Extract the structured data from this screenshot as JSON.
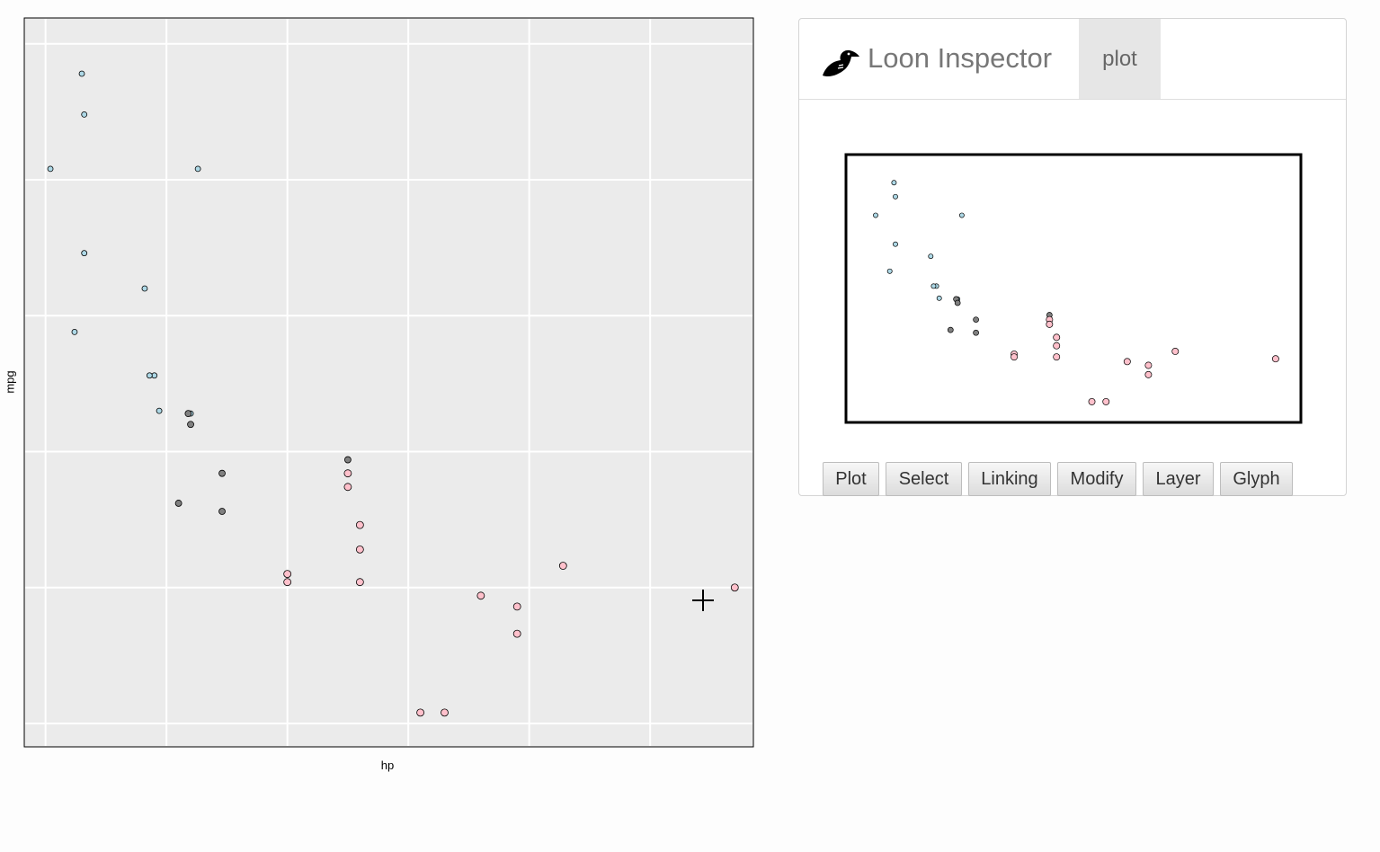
{
  "chart_data": {
    "type": "scatter",
    "xlabel": "hp",
    "ylabel": "mpg",
    "x_range": [
      41.2,
      342.7
    ],
    "y_range": [
      9.14,
      35.95
    ],
    "grid": true,
    "show_tick_labels": false,
    "points": [
      {
        "x": 66,
        "y": 32.4,
        "group": "blue"
      },
      {
        "x": 52,
        "y": 30.4,
        "group": "blue"
      },
      {
        "x": 65,
        "y": 33.9,
        "group": "blue"
      },
      {
        "x": 113,
        "y": 30.4,
        "group": "blue"
      },
      {
        "x": 66,
        "y": 27.3,
        "group": "blue"
      },
      {
        "x": 91,
        "y": 26.0,
        "group": "blue"
      },
      {
        "x": 62,
        "y": 24.4,
        "group": "blue"
      },
      {
        "x": 95,
        "y": 22.8,
        "group": "blue"
      },
      {
        "x": 93,
        "y": 22.8,
        "group": "blue"
      },
      {
        "x": 97,
        "y": 21.5,
        "group": "blue"
      },
      {
        "x": 110,
        "y": 21.4,
        "group": "blue"
      },
      {
        "x": 109,
        "y": 21.4,
        "group": "gray"
      },
      {
        "x": 110,
        "y": 21.0,
        "group": "gray"
      },
      {
        "x": 123,
        "y": 19.2,
        "group": "gray"
      },
      {
        "x": 123,
        "y": 17.8,
        "group": "gray"
      },
      {
        "x": 105,
        "y": 18.1,
        "group": "gray"
      },
      {
        "x": 175,
        "y": 19.7,
        "group": "gray"
      },
      {
        "x": 175,
        "y": 19.2,
        "group": "pink"
      },
      {
        "x": 175,
        "y": 18.7,
        "group": "pink"
      },
      {
        "x": 180,
        "y": 17.3,
        "group": "pink"
      },
      {
        "x": 180,
        "y": 16.4,
        "group": "pink"
      },
      {
        "x": 180,
        "y": 15.2,
        "group": "pink"
      },
      {
        "x": 150,
        "y": 15.5,
        "group": "pink"
      },
      {
        "x": 150,
        "y": 15.2,
        "group": "pink"
      },
      {
        "x": 264,
        "y": 15.8,
        "group": "pink"
      },
      {
        "x": 245,
        "y": 14.3,
        "group": "pink"
      },
      {
        "x": 230,
        "y": 14.7,
        "group": "pink"
      },
      {
        "x": 245,
        "y": 13.3,
        "group": "pink"
      },
      {
        "x": 335,
        "y": 15.0,
        "group": "pink"
      },
      {
        "x": 205,
        "y": 10.4,
        "group": "pink"
      },
      {
        "x": 215,
        "y": 10.4,
        "group": "pink"
      }
    ]
  },
  "colors": {
    "blue": "#add8e6",
    "gray": "#808080",
    "pink": "#ffc0cb",
    "plot_background": "#ebebeb",
    "grid": "#ffffff"
  },
  "crosshair_icon": "crosshair-cursor-icon",
  "inspector": {
    "title": "Loon Inspector",
    "icon": "loon-bird-icon",
    "tab": "plot",
    "buttons": [
      "Plot",
      "Select",
      "Linking",
      "Modify",
      "Layer",
      "Glyph"
    ]
  }
}
